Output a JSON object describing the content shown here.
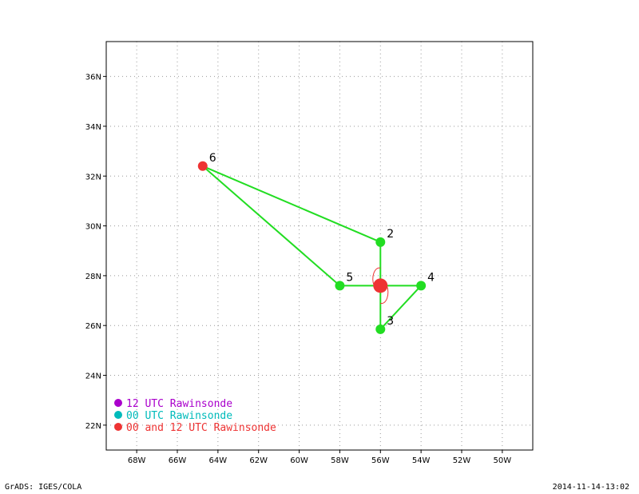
{
  "chart_data": {
    "type": "scatter",
    "xlim": [
      -69.5,
      -48.5
    ],
    "ylim": [
      21,
      37.4
    ],
    "x_ticks": [
      -68,
      -66,
      -64,
      -62,
      -60,
      -58,
      -56,
      -54,
      -52,
      -50
    ],
    "x_tick_labels": [
      "68W",
      "66W",
      "64W",
      "62W",
      "60W",
      "58W",
      "56W",
      "54W",
      "52W",
      "50W"
    ],
    "y_ticks": [
      22,
      24,
      26,
      28,
      30,
      32,
      34,
      36
    ],
    "y_tick_labels": [
      "22N",
      "24N",
      "26N",
      "28N",
      "30N",
      "32N",
      "34N",
      "36N"
    ],
    "grid": true,
    "stations": [
      {
        "id": "2",
        "lon": -56.0,
        "lat": 29.35,
        "color": "#22dd22"
      },
      {
        "id": "3",
        "lon": -56.0,
        "lat": 25.85,
        "color": "#22dd22"
      },
      {
        "id": "4",
        "lon": -54.0,
        "lat": 27.6,
        "color": "#22dd22"
      },
      {
        "id": "5",
        "lon": -58.0,
        "lat": 27.6,
        "color": "#22dd22"
      },
      {
        "id": "6",
        "lon": -64.75,
        "lat": 32.4,
        "color": "#ee3333"
      }
    ],
    "center": {
      "lon": -56.0,
      "lat": 27.6,
      "color": "#ee3333"
    },
    "connections": [
      [
        "6",
        "2"
      ],
      [
        "6",
        "5"
      ],
      [
        "5",
        "4"
      ],
      [
        "2",
        "3"
      ],
      [
        "3",
        "4"
      ]
    ],
    "line_color": "#22dd22",
    "legend": {
      "position": "bottom-left",
      "entries": [
        {
          "label": "12 UTC Rawinsonde",
          "color": "#aa00cc"
        },
        {
          "label": "00 UTC Rawinsonde",
          "color": "#00bbbb"
        },
        {
          "label": "00 and 12 UTC Rawinsonde",
          "color": "#ee3333"
        }
      ]
    }
  },
  "footer": {
    "left": "GrADS: IGES/COLA",
    "right": "2014-11-14-13:02"
  }
}
